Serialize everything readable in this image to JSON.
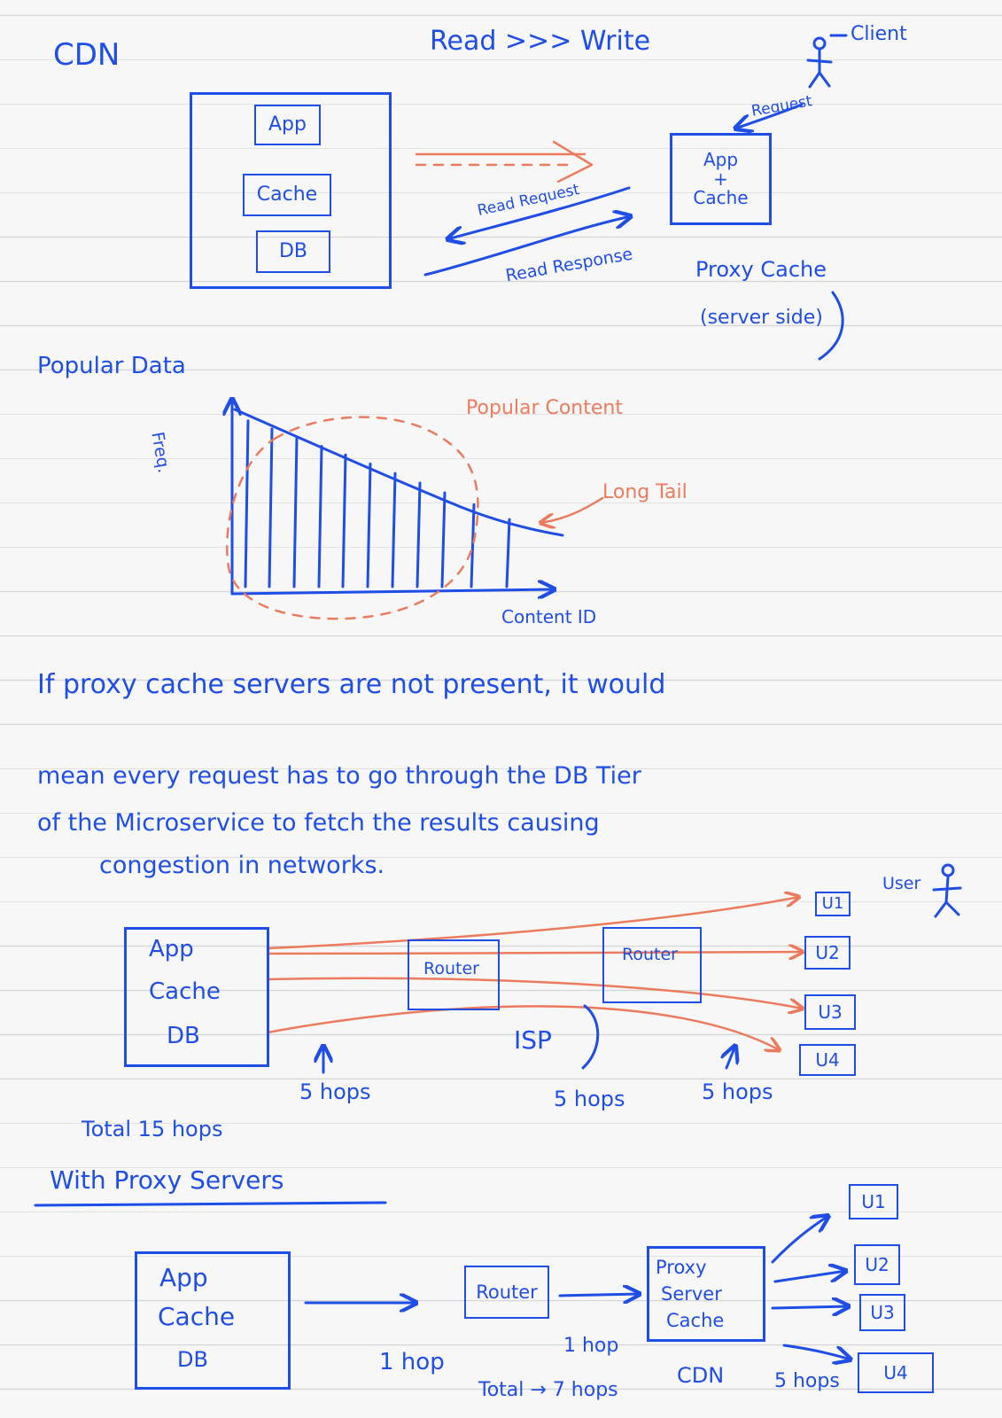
{
  "top": {
    "title": "CDN",
    "read_write": "Read >>> Write",
    "client": "Client",
    "request": "Request",
    "server_box": {
      "app": "App",
      "cache": "Cache",
      "db": "DB"
    },
    "read_request": "Read Request",
    "read_response": "Read Response",
    "app_cache": {
      "line1": "App",
      "line2": "+",
      "line3": "Cache"
    },
    "proxy_cache": "Proxy Cache",
    "server_side": "(server side)"
  },
  "popular": {
    "title": "Popular Data",
    "y_label": "Freq.",
    "x_label": "Content ID",
    "popular_content": "Popular Content",
    "long_tail": "Long Tail"
  },
  "paragraph": {
    "line1": "If proxy cache servers are not present, it would",
    "line2": "mean every request has to go through the DB Tier",
    "line3": "of the Microservice to fetch the results causing",
    "line4": "congestion in networks."
  },
  "without_proxy": {
    "server": {
      "app": "App",
      "cache": "Cache",
      "db": "DB"
    },
    "router1": "Router",
    "router2": "Router",
    "isp": "ISP",
    "users": [
      "U1",
      "U2",
      "U3",
      "U4"
    ],
    "user_label": "User",
    "hops1": "5 hops",
    "hops2": "5 hops",
    "hops3": "5 hops",
    "total": "Total 15 hops"
  },
  "with_proxy": {
    "title": "With Proxy Servers",
    "server": {
      "app": "App",
      "cache": "Cache",
      "db": "DB"
    },
    "router": "Router",
    "proxy": {
      "line1": "Proxy",
      "line2": "Server",
      "line3": "Cache"
    },
    "hop_a": "1 hop",
    "hop_b": "1 hop",
    "total": "Total → 7 hops",
    "cdn": "CDN",
    "hops_users": "5 hops",
    "users": [
      "U1",
      "U2",
      "U3",
      "U4"
    ]
  },
  "colors": {
    "ink_blue": "#1f4ee6",
    "ink_orange": "#ec7b5e",
    "paper": "#f7f7f7",
    "rule": "#d6d6d6"
  }
}
